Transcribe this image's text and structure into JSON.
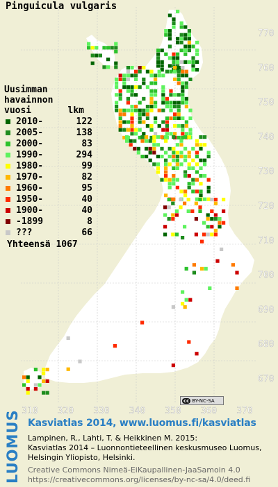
{
  "title": "Pinguicula vulgaris",
  "legend": {
    "heading_line1": "Uusimman",
    "heading_line2": "havainnon",
    "heading_col1": "vuosi",
    "heading_col2": "lkm",
    "items": [
      {
        "label": "2010-",
        "count": "122",
        "color": "#006400"
      },
      {
        "label": "2005-",
        "count": "138",
        "color": "#1e8c1e"
      },
      {
        "label": "2000-",
        "count": "83",
        "color": "#2cc22c"
      },
      {
        "label": "1990-",
        "count": "294",
        "color": "#5ef25e"
      },
      {
        "label": "1980-",
        "count": "99",
        "color": "#ffff00"
      },
      {
        "label": "1970-",
        "count": "82",
        "color": "#ffb800"
      },
      {
        "label": "1960-",
        "count": "95",
        "color": "#ff7a00"
      },
      {
        "label": "1950-",
        "count": "40",
        "color": "#ff2a00"
      },
      {
        "label": "1900-",
        "count": "40",
        "color": "#cc0000"
      },
      {
        "label": "-1899",
        "count": "8",
        "color": "#800000"
      },
      {
        "label": "???",
        "count": "66",
        "color": "#c8c8c8"
      }
    ],
    "total_label": "Yhteensä",
    "total_value": "1067"
  },
  "axes": {
    "y_ticks": [
      "770",
      "760",
      "750",
      "740",
      "730",
      "720",
      "710",
      "700",
      "690",
      "680",
      "670"
    ],
    "x_ticks": [
      "310",
      "320",
      "330",
      "340",
      "350",
      "360",
      "370"
    ]
  },
  "license_badge": {
    "icon": "cc",
    "text": "BY-NC-SA"
  },
  "footer": {
    "logo": "LUOMUS",
    "link_line": "Kasviatlas 2014, www.luomus.fi/kasviatlas",
    "citation_line1": "Lampinen, R., Lahti, T. & Heikkinen M. 2015:",
    "citation_line2": "Kasviatlas 2014 – Luonnontieteellinen keskusmuseo Luomus,",
    "citation_line3": "Helsingin Yliopisto, Helsinki.",
    "license_line1": "Creative Commons Nimeä-EiKaupallinen-JaaSamoin 4.0",
    "license_line2": "https://creativecommons.org/licenses/by-nc-sa/4.0/deed.fi"
  },
  "colors": {
    "land": "#ffffff",
    "water": "#f0efd6",
    "grid": "#c9c9c9",
    "axis_text": "#ffffff",
    "brand_blue": "#2a7fc4"
  }
}
